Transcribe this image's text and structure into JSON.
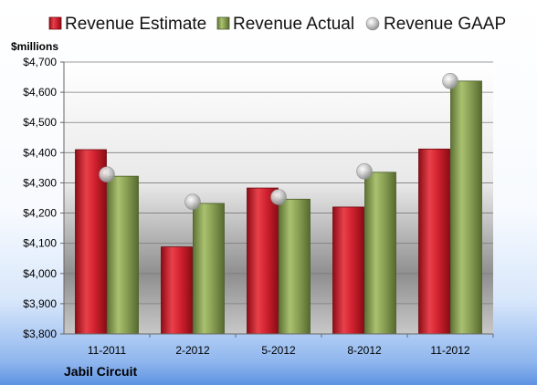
{
  "chart_data": {
    "type": "bar",
    "title": "",
    "company": "Jabil Circuit",
    "ylabel": "$millions",
    "xlabel": "",
    "categories": [
      "11-2011",
      "2-2012",
      "5-2012",
      "8-2012",
      "11-2012"
    ],
    "series": [
      {
        "name": "Revenue Estimate",
        "kind": "bar",
        "color": "#cc1f2b",
        "values": [
          4410,
          4088,
          4283,
          4220,
          4412
        ]
      },
      {
        "name": "Revenue Actual",
        "kind": "bar",
        "color": "#8ca256",
        "values": [
          4322,
          4232,
          4246,
          4335,
          4637
        ]
      },
      {
        "name": "Revenue GAAP",
        "kind": "marker",
        "color": "#b8b8b8",
        "values": [
          4328,
          4237,
          4253,
          4338,
          4637
        ]
      }
    ],
    "ylim": [
      3800,
      4700
    ],
    "yticks": [
      "$3,800",
      "$3,900",
      "$4,000",
      "$4,100",
      "$4,200",
      "$4,300",
      "$4,400",
      "$4,500",
      "$4,600",
      "$4,700"
    ],
    "ytick_values": [
      3800,
      3900,
      4000,
      4100,
      4200,
      4300,
      4400,
      4500,
      4600,
      4700
    ],
    "grid": true,
    "legend_position": "top"
  }
}
